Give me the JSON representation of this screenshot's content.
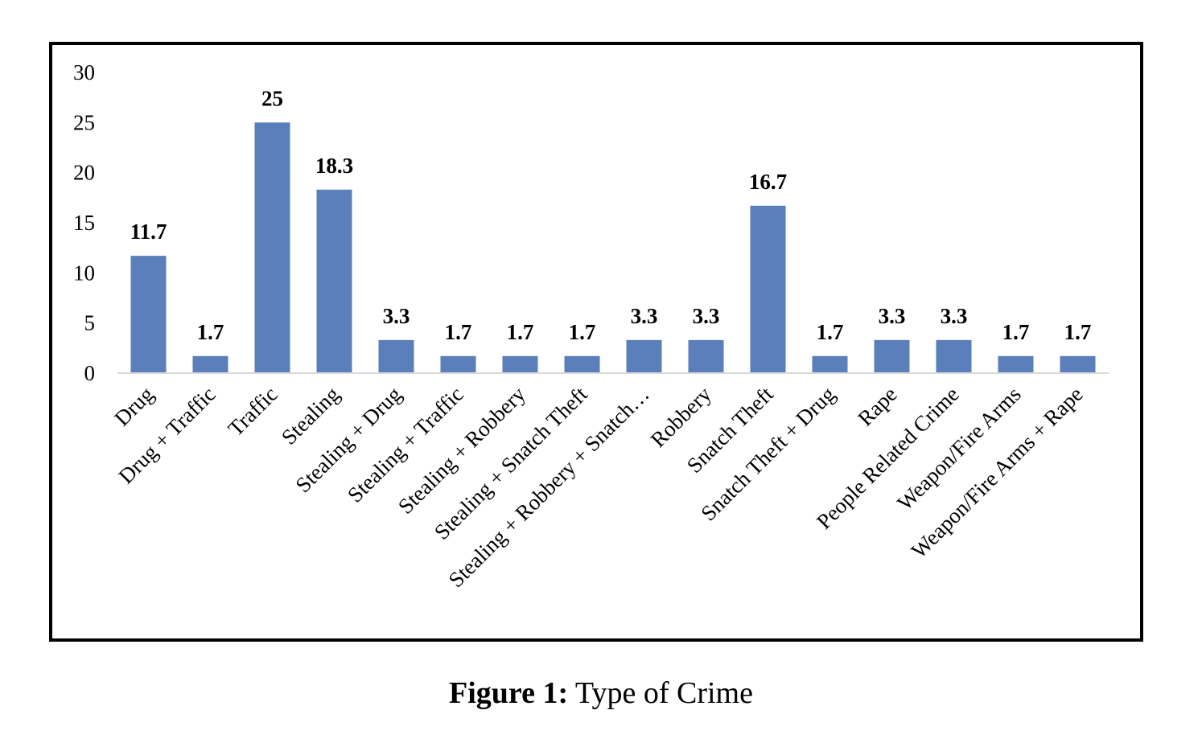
{
  "chart_data": {
    "type": "bar",
    "categories": [
      "Drug",
      "Drug + Traffic",
      "Traffic",
      "Stealing",
      "Stealing + Drug",
      "Stealing + Traffic",
      "Stealing + Robbery",
      "Stealing + Snatch Theft",
      "Stealing + Robbery + Snatch…",
      "Robbery",
      "Snatch Theft",
      "Snatch Theft + Drug",
      "Rape",
      "People Related Crime",
      "Weapon/Fire Arms",
      "Weapon/Fire Arms + Rape"
    ],
    "values": [
      11.7,
      1.7,
      25,
      18.3,
      3.3,
      1.7,
      1.7,
      1.7,
      3.3,
      3.3,
      16.7,
      1.7,
      3.3,
      3.3,
      1.7,
      1.7
    ],
    "value_labels": [
      "11.7",
      "1.7",
      "25",
      "18.3",
      "3.3",
      "1.7",
      "1.7",
      "1.7",
      "3.3",
      "3.3",
      "16.7",
      "1.7",
      "3.3",
      "3.3",
      "1.7",
      "1.7"
    ],
    "yticks": [
      "0",
      "5",
      "10",
      "15",
      "20",
      "25",
      "30"
    ],
    "ylim": [
      0,
      30
    ],
    "bar_color": "#5b7fba",
    "grid": false,
    "legend": "none"
  },
  "caption": {
    "number": "Figure 1:",
    "text": " Type of Crime"
  }
}
